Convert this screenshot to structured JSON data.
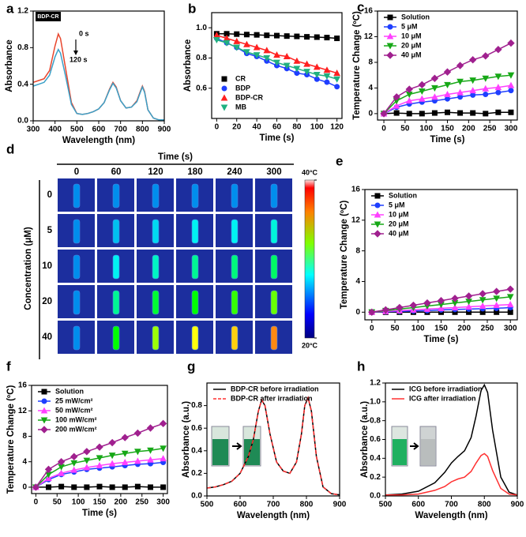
{
  "chart_data": [
    {
      "type": "line",
      "label": "a",
      "xlabel": "Wavelength (nm)",
      "ylabel": "Absorbance",
      "x": [
        300,
        325,
        350,
        375,
        400,
        415,
        425,
        450,
        475,
        500,
        525,
        550,
        575,
        600,
        625,
        650,
        665,
        680,
        700,
        725,
        750,
        775,
        790,
        800,
        810,
        825,
        850,
        875,
        900
      ],
      "series": [
        {
          "name": "0 s",
          "color": "#e8452c",
          "values": [
            0.42,
            0.44,
            0.46,
            0.55,
            0.82,
            0.95,
            0.9,
            0.55,
            0.2,
            0.08,
            0.07,
            0.08,
            0.1,
            0.13,
            0.2,
            0.35,
            0.42,
            0.37,
            0.22,
            0.14,
            0.15,
            0.22,
            0.32,
            0.38,
            0.32,
            0.12,
            0.03,
            0.01,
            0.01
          ]
        },
        {
          "name": "120 s",
          "color": "#3aa0c8",
          "values": [
            0.38,
            0.4,
            0.42,
            0.5,
            0.7,
            0.78,
            0.74,
            0.47,
            0.18,
            0.08,
            0.07,
            0.08,
            0.1,
            0.13,
            0.2,
            0.34,
            0.41,
            0.36,
            0.22,
            0.14,
            0.15,
            0.21,
            0.31,
            0.37,
            0.31,
            0.12,
            0.03,
            0.01,
            0.01
          ]
        }
      ],
      "annotations": [
        {
          "text": "BDP-CR"
        }
      ],
      "xlim": [
        300,
        900
      ],
      "xticks": [
        300,
        400,
        500,
        600,
        700,
        800,
        900
      ],
      "ylim": [
        0,
        1.2
      ],
      "yticks": [
        {
          "value": 0,
          "label": "0.0"
        },
        0.4,
        0.8,
        1.2
      ]
    },
    {
      "type": "line",
      "label": "b",
      "xlabel": "Time (s)",
      "ylabel": "Absorbance",
      "legend": "lower left",
      "x": [
        0,
        10,
        20,
        30,
        40,
        50,
        60,
        70,
        80,
        90,
        100,
        110,
        120
      ],
      "series": [
        {
          "name": "CR",
          "color": "#000000",
          "marker": "square",
          "values": [
            0.96,
            0.96,
            0.958,
            0.955,
            0.953,
            0.95,
            0.948,
            0.945,
            0.943,
            0.94,
            0.938,
            0.935,
            0.93
          ]
        },
        {
          "name": "BDP",
          "color": "#1f3fff",
          "marker": "circle",
          "values": [
            0.93,
            0.9,
            0.87,
            0.83,
            0.81,
            0.78,
            0.75,
            0.73,
            0.7,
            0.69,
            0.66,
            0.64,
            0.61
          ]
        },
        {
          "name": "BDP-CR",
          "color": "#ff2020",
          "marker": "triangle",
          "values": [
            0.95,
            0.93,
            0.91,
            0.89,
            0.87,
            0.85,
            0.82,
            0.81,
            0.78,
            0.76,
            0.74,
            0.72,
            0.7
          ]
        },
        {
          "name": "MB",
          "color": "#20b080",
          "marker": "down-triangle",
          "values": [
            0.92,
            0.9,
            0.87,
            0.84,
            0.82,
            0.8,
            0.77,
            0.75,
            0.73,
            0.71,
            0.69,
            0.68,
            0.66
          ]
        }
      ],
      "xlim": [
        -5,
        125
      ],
      "xticks": [
        0,
        20,
        40,
        60,
        80,
        100,
        120
      ],
      "ylim": [
        0.4,
        1.1
      ],
      "yticks": [
        0.6,
        0.8,
        {
          "value": 1.0,
          "label": "1.0"
        }
      ]
    },
    {
      "type": "line",
      "label": "c",
      "xlabel": "Time (s)",
      "ylabel": "Temperature Change (ºC)",
      "legend": "upper left",
      "x": [
        0,
        30,
        60,
        90,
        120,
        150,
        180,
        210,
        240,
        270,
        300
      ],
      "series": [
        {
          "name": "Solution",
          "color": "#000000",
          "marker": "square",
          "values": [
            0,
            0.1,
            0,
            0,
            0.1,
            0.2,
            0.1,
            0.1,
            0,
            0.2,
            0.2
          ]
        },
        {
          "name": "5 μM",
          "color": "#1f3fff",
          "marker": "circle",
          "values": [
            0,
            1.0,
            1.5,
            1.8,
            2.0,
            2.3,
            2.6,
            2.9,
            3.0,
            3.3,
            3.6
          ]
        },
        {
          "name": "10 μM",
          "color": "#ff40ff",
          "marker": "triangle",
          "values": [
            0,
            1.2,
            2.0,
            2.3,
            2.6,
            3.0,
            3.3,
            3.6,
            3.9,
            4.1,
            4.4
          ]
        },
        {
          "name": "20 μM",
          "color": "#17a817",
          "marker": "down-triangle",
          "values": [
            0,
            2.0,
            3.0,
            3.5,
            4.0,
            4.5,
            5.0,
            5.2,
            5.5,
            5.8,
            6.0
          ]
        },
        {
          "name": "40 μM",
          "color": "#a0208f",
          "marker": "diamond",
          "values": [
            0,
            2.6,
            3.8,
            4.5,
            5.5,
            6.5,
            7.5,
            8.4,
            9.0,
            10.0,
            11.0
          ]
        }
      ],
      "xlim": [
        -15,
        315
      ],
      "xticks": [
        0,
        50,
        100,
        150,
        200,
        250,
        300
      ],
      "ylim": [
        -1,
        16
      ],
      "yticks": [
        0,
        4,
        8,
        12,
        16
      ]
    },
    {
      "type": "heatmap",
      "label": "d",
      "title": "Time (s)",
      "ylabel": "Concentration (μM)",
      "columns": [
        "0",
        "60",
        "120",
        "180",
        "240",
        "300"
      ],
      "rows": [
        "0",
        "5",
        "10",
        "20",
        "40"
      ],
      "values": [
        [
          23,
          23,
          23,
          23,
          23,
          23
        ],
        [
          23,
          24,
          24.5,
          25,
          25,
          25.5
        ],
        [
          23,
          25,
          26,
          27,
          27.5,
          28
        ],
        [
          23,
          27,
          29,
          30,
          31,
          32
        ],
        [
          23,
          30,
          33,
          35,
          36,
          37.5
        ]
      ],
      "zlim": [
        20,
        40
      ],
      "colorbar_ticks": [
        {
          "value": 40,
          "label": "40°C"
        },
        {
          "value": 20,
          "label": "20°C"
        }
      ]
    },
    {
      "type": "line",
      "label": "e",
      "xlabel": "Time (s)",
      "ylabel": "Temperature Change (ºC)",
      "legend": "upper left",
      "x": [
        0,
        30,
        60,
        90,
        120,
        150,
        180,
        210,
        240,
        270,
        300
      ],
      "series": [
        {
          "name": "Solution",
          "color": "#000000",
          "marker": "square",
          "values": [
            0,
            0,
            0,
            0,
            0,
            0,
            0,
            0,
            0,
            0,
            0
          ]
        },
        {
          "name": "5 μM",
          "color": "#1f3fff",
          "marker": "circle",
          "values": [
            0,
            0.05,
            0.1,
            0.15,
            0.2,
            0.3,
            0.35,
            0.4,
            0.45,
            0.5,
            0.6
          ]
        },
        {
          "name": "10 μM",
          "color": "#ff40ff",
          "marker": "triangle",
          "values": [
            0,
            0.1,
            0.2,
            0.3,
            0.4,
            0.5,
            0.6,
            0.7,
            0.8,
            0.9,
            1.0
          ]
        },
        {
          "name": "20 μM",
          "color": "#17a817",
          "marker": "down-triangle",
          "values": [
            0,
            0.2,
            0.4,
            0.6,
            0.8,
            1.0,
            1.2,
            1.4,
            1.6,
            1.8,
            2.0
          ]
        },
        {
          "name": "40 μM",
          "color": "#a0208f",
          "marker": "diamond",
          "values": [
            0,
            0.3,
            0.6,
            0.9,
            1.2,
            1.5,
            1.8,
            2.1,
            2.4,
            2.7,
            3.0
          ]
        }
      ],
      "xlim": [
        -15,
        315
      ],
      "xticks": [
        0,
        50,
        100,
        150,
        200,
        250,
        300
      ],
      "ylim": [
        -1,
        16
      ],
      "yticks": [
        0,
        4,
        8,
        12,
        16
      ]
    },
    {
      "type": "line",
      "label": "f",
      "xlabel": "Time (s)",
      "ylabel": "Temperature Change (ºC)",
      "legend": "upper left",
      "x": [
        0,
        30,
        60,
        90,
        120,
        150,
        180,
        210,
        240,
        270,
        300
      ],
      "series": [
        {
          "name": "Solution",
          "color": "#000000",
          "marker": "square",
          "values": [
            0,
            0,
            0.1,
            0,
            0,
            0.1,
            0,
            0,
            0.1,
            0,
            0
          ]
        },
        {
          "name": "25 mW/cm²",
          "color": "#1f3fff",
          "marker": "circle",
          "values": [
            0,
            1.2,
            2.0,
            2.4,
            2.8,
            3.0,
            3.2,
            3.4,
            3.6,
            3.7,
            3.9
          ]
        },
        {
          "name": "50 mW/cm²",
          "color": "#ff40ff",
          "marker": "triangle",
          "values": [
            0,
            1.4,
            2.2,
            2.7,
            3.1,
            3.4,
            3.7,
            3.9,
            4.1,
            4.3,
            4.5
          ]
        },
        {
          "name": "100 mW/cm²",
          "color": "#17a817",
          "marker": "down-triangle",
          "values": [
            0,
            2.0,
            3.2,
            3.8,
            4.2,
            4.6,
            5.0,
            5.3,
            5.6,
            5.8,
            6.1
          ]
        },
        {
          "name": "200 mW/cm²",
          "color": "#a0208f",
          "marker": "diamond",
          "values": [
            0,
            2.8,
            4.0,
            4.8,
            5.6,
            6.3,
            7.0,
            7.8,
            8.5,
            9.3,
            10.0
          ]
        }
      ],
      "xlim": [
        -10,
        310
      ],
      "xticks": [
        0,
        50,
        100,
        150,
        200,
        250,
        300
      ],
      "ylim": [
        -1,
        16
      ],
      "yticks": [
        0,
        4,
        8,
        12,
        16
      ]
    },
    {
      "type": "line",
      "label": "g",
      "xlabel": "Wavelength (nm)",
      "ylabel": "Absorbance (a.u.)",
      "legend": "upper left",
      "x": [
        500,
        525,
        550,
        575,
        600,
        625,
        640,
        655,
        665,
        675,
        690,
        710,
        730,
        750,
        770,
        785,
        795,
        805,
        815,
        830,
        850,
        875,
        900
      ],
      "series": [
        {
          "name": "BDP-CR before irradiation",
          "color": "#000000",
          "values": [
            0.07,
            0.08,
            0.1,
            0.13,
            0.2,
            0.35,
            0.5,
            0.75,
            0.85,
            0.8,
            0.55,
            0.3,
            0.22,
            0.2,
            0.3,
            0.55,
            0.8,
            0.87,
            0.75,
            0.35,
            0.08,
            0.02,
            0.01
          ]
        },
        {
          "name": "BDP-CR after irradiation",
          "color": "#ff3030",
          "dash": true,
          "values": [
            0.07,
            0.08,
            0.1,
            0.13,
            0.2,
            0.35,
            0.5,
            0.75,
            0.85,
            0.8,
            0.55,
            0.3,
            0.22,
            0.2,
            0.3,
            0.55,
            0.8,
            0.87,
            0.75,
            0.35,
            0.08,
            0.02,
            0.01
          ]
        }
      ],
      "xlim": [
        500,
        900
      ],
      "xticks": [
        500,
        600,
        700,
        800,
        900
      ],
      "ylim": [
        0,
        1.0
      ],
      "yticks": [
        {
          "value": 0,
          "label": "0.0"
        },
        0.2,
        0.4,
        0.6,
        0.8
      ]
    },
    {
      "type": "line",
      "label": "h",
      "xlabel": "Wavelength (nm)",
      "ylabel": "Absorbance (a.u.)",
      "legend": "upper left",
      "x": [
        500,
        550,
        600,
        650,
        680,
        700,
        720,
        740,
        760,
        775,
        790,
        800,
        810,
        825,
        850,
        875,
        900
      ],
      "series": [
        {
          "name": "ICG before irradiation",
          "color": "#000000",
          "values": [
            0.01,
            0.02,
            0.05,
            0.14,
            0.25,
            0.35,
            0.42,
            0.48,
            0.62,
            0.85,
            1.12,
            1.18,
            1.1,
            0.7,
            0.2,
            0.04,
            0.01
          ]
        },
        {
          "name": "ICG after irradiation",
          "color": "#ff3030",
          "values": [
            0.01,
            0.01,
            0.02,
            0.06,
            0.1,
            0.15,
            0.18,
            0.2,
            0.26,
            0.35,
            0.43,
            0.45,
            0.42,
            0.27,
            0.08,
            0.02,
            0.01
          ]
        }
      ],
      "xlim": [
        500,
        900
      ],
      "xticks": [
        500,
        600,
        700,
        800,
        900
      ],
      "ylim": [
        0,
        1.2
      ],
      "yticks": [
        {
          "value": 0,
          "label": "0.0"
        },
        0.2,
        0.4,
        0.6,
        0.8,
        {
          "value": 1.0,
          "label": "1.0"
        },
        1.2
      ]
    }
  ]
}
